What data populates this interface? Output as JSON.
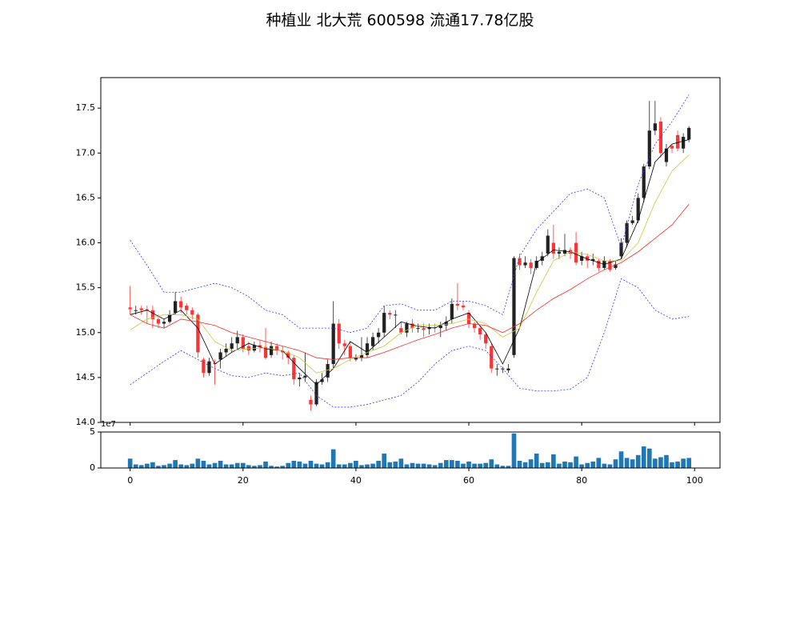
{
  "chart_data": {
    "type": "candlestick",
    "title": "种植业 北大荒 600598 流通17.78亿股",
    "x": [
      0,
      1,
      2,
      3,
      4,
      5,
      6,
      7,
      8,
      9,
      10,
      11,
      12,
      13,
      14,
      15,
      16,
      17,
      18,
      19,
      20,
      21,
      22,
      23,
      24,
      25,
      26,
      27,
      28,
      29,
      30,
      31,
      32,
      33,
      34,
      35,
      36,
      37,
      38,
      39,
      40,
      41,
      42,
      43,
      44,
      45,
      46,
      47,
      48,
      49,
      50,
      51,
      52,
      53,
      54,
      55,
      56,
      57,
      58,
      59,
      60,
      61,
      62,
      63,
      64,
      65,
      66,
      67,
      68,
      69,
      70,
      71,
      72,
      73,
      74,
      75,
      76,
      77,
      78,
      79,
      80,
      81,
      82,
      83,
      84,
      85,
      86,
      87,
      88,
      89,
      90,
      91,
      92,
      93,
      94,
      95,
      96,
      97,
      98,
      99
    ],
    "open": [
      15.28,
      15.25,
      15.27,
      15.26,
      15.25,
      15.15,
      15.1,
      15.12,
      15.22,
      15.35,
      15.3,
      15.25,
      15.2,
      14.7,
      14.55,
      14.66,
      14.7,
      14.78,
      14.82,
      14.88,
      14.95,
      14.85,
      14.8,
      14.86,
      14.84,
      14.75,
      14.85,
      14.8,
      14.78,
      14.72,
      14.48,
      14.5,
      14.25,
      14.2,
      14.45,
      14.5,
      14.65,
      15.1,
      14.88,
      14.85,
      14.7,
      14.72,
      14.75,
      14.85,
      14.95,
      15.0,
      15.22,
      15.2,
      15.05,
      15.0,
      15.1,
      15.05,
      15.05,
      15.04,
      15.06,
      15.05,
      15.08,
      15.15,
      15.32,
      15.3,
      15.22,
      15.1,
      15.05,
      14.98,
      14.85,
      14.6,
      14.6,
      14.58,
      14.75,
      15.83,
      15.75,
      15.78,
      15.72,
      15.8,
      15.88,
      16.0,
      15.88,
      15.88,
      15.92,
      16.0,
      15.8,
      15.85,
      15.8,
      15.8,
      15.72,
      15.8,
      15.72,
      15.85,
      16.0,
      16.22,
      16.25,
      16.5,
      16.85,
      17.25,
      17.35,
      16.9,
      17.08,
      17.2,
      17.05,
      17.15
    ],
    "close": [
      15.26,
      15.25,
      15.25,
      15.25,
      15.15,
      15.1,
      15.12,
      15.2,
      15.35,
      15.28,
      15.25,
      15.2,
      14.78,
      14.55,
      14.68,
      14.65,
      14.78,
      14.82,
      14.88,
      14.95,
      14.82,
      14.8,
      14.86,
      14.84,
      14.72,
      14.85,
      14.8,
      14.78,
      14.72,
      14.48,
      14.5,
      14.52,
      14.2,
      14.45,
      14.48,
      14.65,
      15.1,
      14.88,
      14.85,
      14.72,
      14.72,
      14.75,
      14.88,
      14.95,
      15.0,
      15.22,
      15.2,
      15.2,
      15.0,
      15.1,
      15.05,
      15.05,
      15.03,
      15.06,
      15.05,
      15.08,
      15.12,
      15.32,
      15.3,
      15.28,
      15.1,
      15.05,
      14.98,
      14.88,
      14.6,
      14.6,
      14.6,
      14.6,
      15.83,
      15.75,
      15.78,
      15.72,
      15.8,
      15.85,
      16.08,
      15.88,
      15.9,
      15.92,
      15.88,
      15.78,
      15.85,
      15.8,
      15.82,
      15.72,
      15.8,
      15.7,
      15.76,
      16.0,
      16.22,
      16.25,
      16.5,
      16.85,
      17.25,
      17.33,
      17.0,
      17.05,
      17.05,
      17.05,
      17.18,
      17.28
    ],
    "high": [
      15.52,
      15.3,
      15.3,
      15.3,
      15.3,
      15.2,
      15.15,
      15.25,
      15.45,
      15.4,
      15.33,
      15.28,
      15.22,
      14.72,
      14.72,
      14.7,
      14.82,
      14.88,
      14.95,
      15.02,
      14.98,
      14.9,
      14.9,
      14.92,
      15.05,
      14.9,
      14.88,
      14.85,
      14.8,
      14.75,
      14.55,
      14.78,
      14.3,
      14.48,
      14.55,
      14.7,
      15.35,
      15.15,
      14.92,
      14.9,
      14.76,
      14.95,
      14.95,
      15.0,
      15.05,
      15.3,
      15.25,
      15.25,
      15.12,
      15.12,
      15.15,
      15.1,
      15.1,
      15.1,
      15.1,
      15.12,
      15.18,
      15.38,
      15.55,
      15.35,
      15.25,
      15.12,
      15.08,
      15.0,
      14.88,
      14.65,
      14.62,
      14.65,
      15.85,
      15.88,
      15.85,
      15.82,
      15.85,
      15.9,
      16.15,
      16.2,
      15.95,
      16.1,
      15.95,
      16.12,
      15.9,
      15.88,
      15.88,
      15.82,
      15.85,
      15.82,
      15.8,
      16.05,
      16.25,
      16.3,
      16.55,
      16.88,
      17.58,
      17.58,
      17.4,
      17.1,
      17.1,
      17.25,
      17.22,
      17.3
    ],
    "low": [
      15.2,
      15.2,
      15.2,
      15.1,
      15.05,
      15.05,
      15.05,
      15.1,
      15.2,
      15.22,
      15.2,
      15.15,
      14.72,
      14.5,
      14.52,
      14.42,
      14.6,
      14.74,
      14.78,
      14.82,
      14.78,
      14.75,
      14.78,
      14.78,
      14.7,
      14.72,
      14.75,
      14.7,
      14.65,
      14.42,
      14.4,
      14.45,
      14.13,
      14.18,
      14.42,
      14.45,
      14.6,
      14.82,
      14.75,
      14.68,
      14.68,
      14.68,
      14.72,
      14.8,
      14.88,
      14.95,
      15.15,
      15.05,
      14.98,
      14.95,
      15.0,
      15.0,
      14.95,
      14.98,
      15.0,
      14.95,
      15.02,
      15.1,
      15.25,
      15.25,
      15.05,
      15.0,
      14.92,
      14.82,
      14.55,
      14.52,
      14.55,
      14.55,
      14.72,
      15.7,
      15.72,
      15.65,
      15.7,
      15.75,
      15.85,
      15.82,
      15.82,
      15.85,
      15.82,
      15.75,
      15.75,
      15.72,
      15.75,
      15.68,
      15.7,
      15.68,
      15.7,
      15.82,
      15.95,
      16.2,
      16.22,
      16.45,
      16.82,
      17.2,
      16.95,
      16.85,
      17.0,
      17.02,
      17.0,
      17.12
    ],
    "up_color": "#222222",
    "down_color": "#ff3333",
    "ma_x": [
      0,
      3,
      6,
      9,
      12,
      15,
      18,
      21,
      24,
      27,
      30,
      33,
      36,
      39,
      42,
      45,
      48,
      51,
      54,
      57,
      60,
      63,
      66,
      69,
      72,
      75,
      78,
      81,
      84,
      87,
      90,
      93,
      96,
      99
    ],
    "lines": [
      {
        "color": "#000000",
        "dashed": false,
        "values": [
          15.2,
          15.25,
          15.15,
          15.25,
          15.05,
          14.65,
          14.78,
          14.88,
          14.82,
          14.8,
          14.6,
          14.42,
          14.6,
          14.9,
          14.78,
          14.95,
          15.12,
          15.07,
          15.05,
          15.15,
          15.22,
          15.0,
          14.65,
          15.05,
          15.78,
          15.92,
          15.9,
          15.82,
          15.76,
          15.82,
          16.25,
          16.9,
          17.1,
          17.15
        ]
      },
      {
        "color": "#c8c83c",
        "dashed": false,
        "values": [
          15.03,
          15.15,
          15.2,
          15.2,
          15.15,
          14.9,
          14.8,
          14.82,
          14.83,
          14.8,
          14.72,
          14.55,
          14.6,
          14.7,
          14.78,
          14.85,
          15.0,
          15.08,
          15.08,
          15.1,
          15.15,
          15.1,
          14.95,
          15.05,
          15.45,
          15.8,
          15.9,
          15.87,
          15.8,
          15.8,
          16.0,
          16.45,
          16.8,
          16.98
        ]
      },
      {
        "color": "#ff2a2a",
        "dashed": false,
        "values": [
          15.2,
          15.1,
          15.05,
          15.15,
          15.12,
          15.08,
          15.0,
          14.95,
          14.9,
          14.85,
          14.8,
          14.72,
          14.7,
          14.72,
          14.72,
          14.78,
          14.85,
          14.92,
          14.98,
          15.05,
          15.1,
          15.08,
          15.0,
          15.1,
          15.25,
          15.38,
          15.48,
          15.6,
          15.7,
          15.78,
          15.9,
          16.05,
          16.2,
          16.43
        ]
      },
      {
        "color": "#3333ff",
        "dashed": true,
        "values": [
          16.03,
          15.75,
          15.45,
          15.45,
          15.5,
          15.55,
          15.5,
          15.4,
          15.25,
          15.2,
          15.05,
          15.05,
          15.05,
          15.0,
          15.05,
          15.3,
          15.32,
          15.25,
          15.25,
          15.35,
          15.35,
          15.3,
          15.2,
          15.85,
          16.15,
          16.35,
          16.55,
          16.6,
          16.5,
          15.95,
          16.65,
          17.1,
          17.35,
          17.65
        ]
      },
      {
        "color": "#3333ff",
        "dashed": true,
        "values": [
          14.42,
          14.55,
          14.68,
          14.8,
          14.7,
          14.6,
          14.52,
          14.5,
          14.55,
          14.52,
          14.55,
          14.3,
          14.17,
          14.17,
          14.2,
          14.25,
          14.3,
          14.45,
          14.65,
          14.8,
          14.85,
          14.8,
          14.6,
          14.38,
          14.35,
          14.35,
          14.37,
          14.5,
          15.0,
          15.6,
          15.5,
          15.25,
          15.15,
          15.18
        ]
      }
    ],
    "xlim": [
      -5.2,
      104.5
    ],
    "xticks": [
      0,
      20,
      40,
      60,
      80,
      100
    ],
    "ylim": [
      14.0,
      17.84
    ],
    "yticks": [
      {
        "value": 14.0,
        "label": "14.0"
      },
      {
        "value": 14.5,
        "label": "14.5"
      },
      {
        "value": 15.0,
        "label": "15.0"
      },
      {
        "value": 15.5,
        "label": "15.5"
      },
      {
        "value": 16.0,
        "label": "16.0"
      },
      {
        "value": 16.5,
        "label": "16.5"
      },
      {
        "value": 17.0,
        "label": "17.0"
      },
      {
        "value": 17.5,
        "label": "17.5"
      }
    ],
    "volume": {
      "color": "#1f77b4",
      "offset_label": "1e7",
      "ylim": [
        0,
        5
      ],
      "yticks": [
        0,
        5
      ],
      "values": [
        1.3,
        0.5,
        0.4,
        0.6,
        0.8,
        0.3,
        0.4,
        0.6,
        1.1,
        0.5,
        0.4,
        0.6,
        1.3,
        1.0,
        0.5,
        0.7,
        1.0,
        0.5,
        0.5,
        0.7,
        0.7,
        0.4,
        0.3,
        0.4,
        0.9,
        0.3,
        0.2,
        0.3,
        0.7,
        1.0,
        0.9,
        0.6,
        1.0,
        0.6,
        0.5,
        0.8,
        2.6,
        0.5,
        0.5,
        0.7,
        1.0,
        0.4,
        0.5,
        0.6,
        1.0,
        2.0,
        0.8,
        0.9,
        1.3,
        0.5,
        0.7,
        0.6,
        0.6,
        0.5,
        0.4,
        0.7,
        1.1,
        1.1,
        1.0,
        0.6,
        0.9,
        0.6,
        0.6,
        0.7,
        1.2,
        0.5,
        0.3,
        0.3,
        4.8,
        1.0,
        0.8,
        1.2,
        2.0,
        0.7,
        0.8,
        1.9,
        0.6,
        0.9,
        0.8,
        1.6,
        0.5,
        0.7,
        0.9,
        1.4,
        0.6,
        0.5,
        1.2,
        2.3,
        1.4,
        1.2,
        1.8,
        3.0,
        2.7,
        1.3,
        1.5,
        1.8,
        0.8,
        0.9,
        1.3,
        1.4
      ]
    }
  }
}
